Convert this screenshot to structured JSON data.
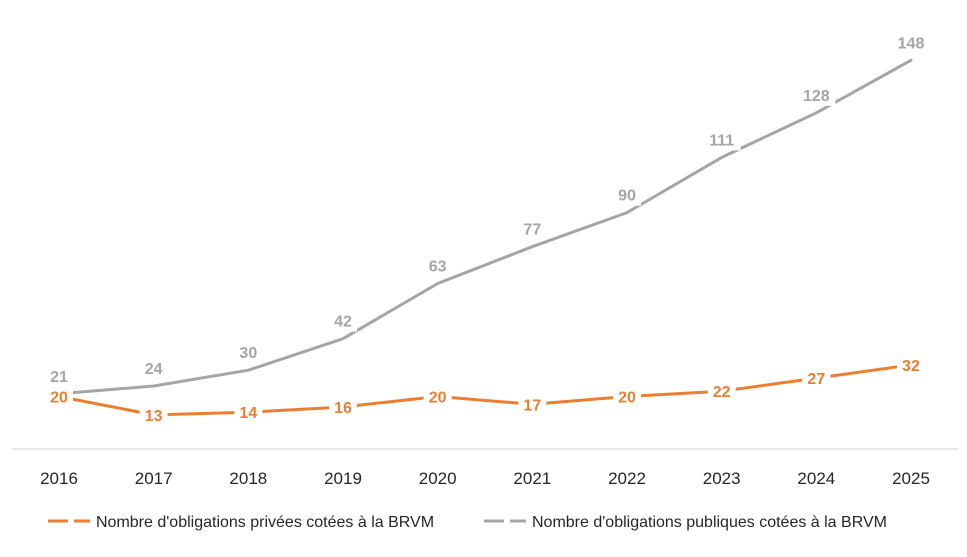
{
  "chart_data": {
    "type": "line",
    "title": "",
    "xlabel": "",
    "ylabel": "",
    "categories": [
      "2016",
      "2017",
      "2018",
      "2019",
      "2020",
      "2021",
      "2022",
      "2023",
      "2024",
      "2025"
    ],
    "series": [
      {
        "name": "Nombre d'obligations privées cotées à la BRVM",
        "values": [
          20,
          13,
          14,
          16,
          20,
          17,
          20,
          22,
          27,
          32
        ],
        "color": "#ED7D31"
      },
      {
        "name": "Nombre d'obligations publiques cotées à la BRVM",
        "values": [
          21,
          24,
          30,
          42,
          63,
          77,
          90,
          111,
          128,
          148
        ],
        "color": "#A5A5A5"
      }
    ],
    "ylim": [
      0,
      150
    ],
    "grid": false,
    "legend_position": "bottom"
  }
}
